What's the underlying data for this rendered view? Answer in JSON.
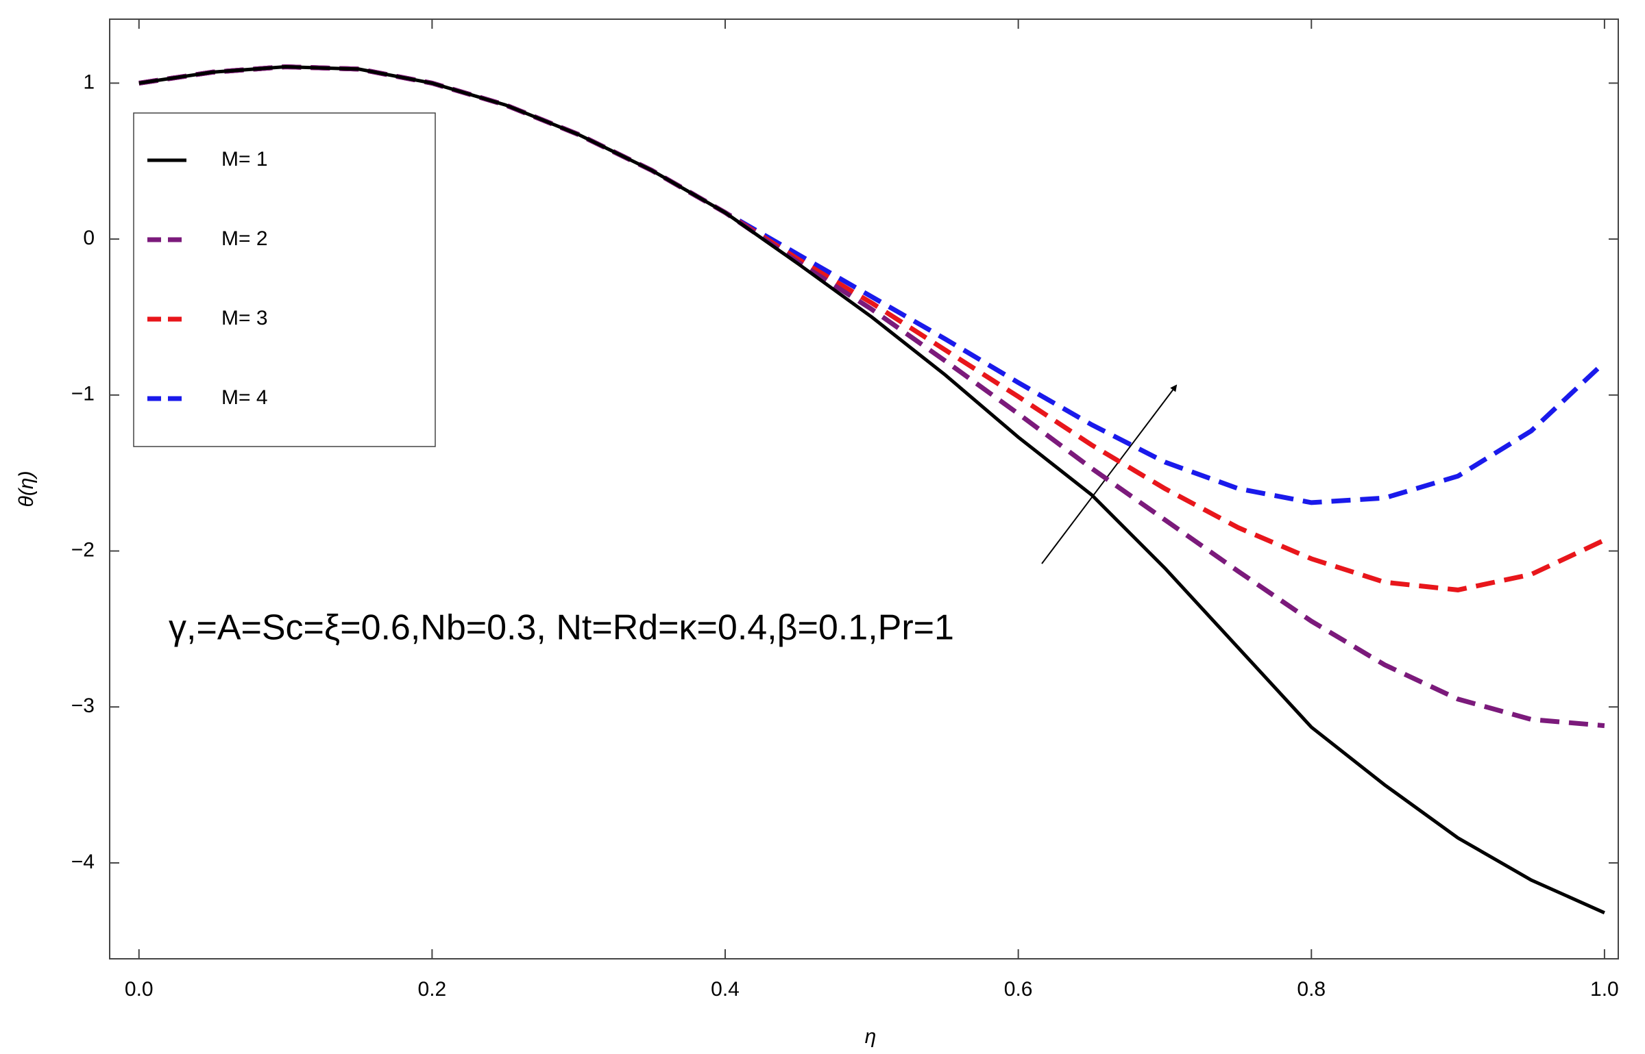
{
  "chart_data": {
    "type": "line",
    "x_label": "η",
    "y_label": "θ(η)",
    "annotation": "γ,=A=Sc=ξ=0.6,Nb=0.3, Nt=Rd=κ=0.4,β=0.1,Pr=1",
    "x": [
      0,
      0.05,
      0.1,
      0.15,
      0.2,
      0.25,
      0.3,
      0.35,
      0.4,
      0.45,
      0.5,
      0.55,
      0.6,
      0.65,
      0.7,
      0.75,
      0.8,
      0.85,
      0.9,
      0.95,
      1.0
    ],
    "series": [
      {
        "name": "M= 1",
        "color": "#000000",
        "dashed": false,
        "values": [
          1.0,
          1.07,
          1.105,
          1.09,
          1.0,
          0.86,
          0.67,
          0.44,
          0.17,
          -0.16,
          -0.5,
          -0.87,
          -1.27,
          -1.64,
          -2.11,
          -2.62,
          -3.13,
          -3.5,
          -3.84,
          -4.11,
          -4.32
        ]
      },
      {
        "name": "M= 2",
        "color": "#7b1a7b",
        "dashed": true,
        "values": [
          1.0,
          1.07,
          1.105,
          1.09,
          1.0,
          0.86,
          0.67,
          0.44,
          0.17,
          -0.15,
          -0.45,
          -0.78,
          -1.12,
          -1.47,
          -1.8,
          -2.13,
          -2.45,
          -2.73,
          -2.95,
          -3.08,
          -3.12
        ]
      },
      {
        "name": "M= 3",
        "color": "#e8161b",
        "dashed": true,
        "values": [
          1.0,
          1.07,
          1.105,
          1.09,
          1.0,
          0.86,
          0.67,
          0.44,
          0.17,
          -0.13,
          -0.41,
          -0.71,
          -1.01,
          -1.32,
          -1.6,
          -1.85,
          -2.05,
          -2.2,
          -2.25,
          -2.15,
          -1.93
        ]
      },
      {
        "name": "M= 4",
        "color": "#1a1aeb",
        "dashed": true,
        "values": [
          1.0,
          1.07,
          1.105,
          1.09,
          1.0,
          0.86,
          0.67,
          0.44,
          0.17,
          -0.1,
          -0.37,
          -0.64,
          -0.92,
          -1.19,
          -1.43,
          -1.6,
          -1.69,
          -1.66,
          -1.52,
          -1.23,
          -0.79
        ]
      }
    ],
    "xlim": [
      -0.02,
      1.0094
    ],
    "ylim": [
      -4.615,
      1.41
    ],
    "xticks": [
      {
        "value": 0,
        "label": "0.0"
      },
      0.2,
      0.4,
      0.6,
      0.8,
      {
        "value": 1,
        "label": "1.0"
      }
    ],
    "yticks": [
      {
        "value": -4,
        "label": "−4"
      },
      {
        "value": -3,
        "label": "−3"
      },
      {
        "value": -2,
        "label": "−2"
      },
      {
        "value": -1,
        "label": "−1"
      },
      0,
      1
    ],
    "grid": false,
    "legend": "upper-left"
  }
}
